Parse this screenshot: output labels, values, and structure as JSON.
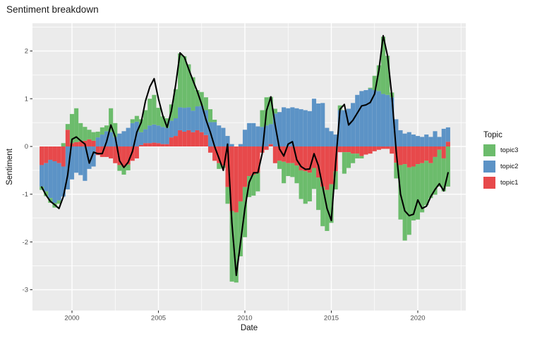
{
  "chart": {
    "title": "Sentiment breakdown",
    "x_axis_title": "Date",
    "y_axis_title": "Sentiment",
    "legend": {
      "title": "Topic",
      "items": [
        {
          "label": "topic3",
          "color": "#6CBC6C"
        },
        {
          "label": "topic2",
          "color": "#5C93C6"
        },
        {
          "label": "topic1",
          "color": "#E7494B"
        }
      ]
    },
    "colors": {
      "panel_background": "#EBEBEB",
      "gridline": "#FFFFFF",
      "tick_mark": "#333333",
      "tick_label": "#4D4D4D",
      "line": "#000000"
    }
  },
  "chart_data": {
    "type": "bar",
    "stacked": true,
    "overlay_line": true,
    "title": "Sentiment breakdown",
    "xlabel": "Date",
    "ylabel": "Sentiment",
    "legend_title": "Topic",
    "legend_position": "right",
    "grid": true,
    "xlim": [
      1997.7,
      2022.8
    ],
    "ylim": [
      -3.44,
      2.58
    ],
    "x_ticks": [
      {
        "value": 2000,
        "label": "2000"
      },
      {
        "value": 2005,
        "label": "2005"
      },
      {
        "value": 2010,
        "label": "2010"
      },
      {
        "value": 2015,
        "label": "2015"
      },
      {
        "value": 2020,
        "label": "2020"
      }
    ],
    "x_minor_ticks": [
      2002.5,
      2007.5,
      2012.5,
      2017.5,
      2022.5
    ],
    "y_ticks": [
      {
        "value": 2,
        "label": "2"
      },
      {
        "value": 1,
        "label": "1"
      },
      {
        "value": 0,
        "label": "0"
      },
      {
        "value": -1,
        "label": "-1"
      },
      {
        "value": -2,
        "label": "-2"
      },
      {
        "value": -3,
        "label": "-3"
      }
    ],
    "y_minor_ticks": [
      2.5,
      1.5,
      0.5,
      -0.5,
      -1.5,
      -2.5
    ],
    "x": [
      1998.25,
      1998.5,
      1998.75,
      1999.0,
      1999.25,
      1999.5,
      1999.75,
      2000.0,
      2000.25,
      2000.5,
      2000.75,
      2001.0,
      2001.25,
      2001.5,
      2001.75,
      2002.0,
      2002.25,
      2002.5,
      2002.75,
      2003.0,
      2003.25,
      2003.5,
      2003.75,
      2004.0,
      2004.25,
      2004.5,
      2004.75,
      2005.0,
      2005.25,
      2005.5,
      2005.75,
      2006.0,
      2006.25,
      2006.5,
      2006.75,
      2007.0,
      2007.25,
      2007.5,
      2007.75,
      2008.0,
      2008.25,
      2008.5,
      2008.75,
      2009.0,
      2009.25,
      2009.5,
      2009.75,
      2010.0,
      2010.25,
      2010.5,
      2010.75,
      2011.0,
      2011.25,
      2011.5,
      2011.75,
      2012.0,
      2012.25,
      2012.5,
      2012.75,
      2013.0,
      2013.25,
      2013.5,
      2013.75,
      2014.0,
      2014.25,
      2014.5,
      2014.75,
      2015.0,
      2015.25,
      2015.5,
      2015.75,
      2016.0,
      2016.25,
      2016.5,
      2016.75,
      2017.0,
      2017.25,
      2017.5,
      2017.75,
      2018.0,
      2018.25,
      2018.5,
      2018.75,
      2019.0,
      2019.25,
      2019.5,
      2019.75,
      2020.0,
      2020.25,
      2020.5,
      2020.75,
      2021.0,
      2021.25,
      2021.5,
      2021.75
    ],
    "series": [
      {
        "name": "topic1",
        "color": "#E7494B",
        "values": [
          -0.39,
          -0.35,
          -0.28,
          -0.31,
          -0.35,
          -0.42,
          0.35,
          0.07,
          0.09,
          0.1,
          0.12,
          0.15,
          0.12,
          -0.18,
          -0.22,
          -0.22,
          -0.25,
          -0.35,
          -0.39,
          -0.43,
          -0.38,
          -0.3,
          -0.25,
          0.03,
          0.07,
          0.07,
          0.08,
          0.07,
          0.05,
          0.05,
          0.19,
          0.22,
          0.34,
          0.31,
          0.34,
          0.3,
          0.34,
          0.3,
          0.24,
          -0.13,
          -0.3,
          -0.35,
          -0.4,
          -0.85,
          -1.35,
          -1.38,
          -1.15,
          -0.85,
          -0.62,
          -0.59,
          -0.55,
          -0.13,
          -0.07,
          0.05,
          -0.35,
          -0.3,
          -0.32,
          -0.35,
          -0.35,
          -0.4,
          -0.5,
          -0.52,
          -0.55,
          -0.45,
          -0.65,
          -0.84,
          -0.91,
          -0.79,
          -0.52,
          -0.12,
          -0.12,
          -0.12,
          -0.15,
          -0.15,
          -0.2,
          -0.17,
          -0.15,
          -0.1,
          -0.07,
          -0.05,
          -0.05,
          -0.15,
          -0.34,
          -0.39,
          -0.37,
          -0.44,
          -0.42,
          -0.37,
          -0.35,
          -0.3,
          -0.35,
          -0.22,
          -0.07,
          -0.25,
          0.1
        ]
      },
      {
        "name": "topic2",
        "color": "#5C93C6",
        "values": [
          -0.45,
          -0.59,
          -0.8,
          -0.87,
          -0.78,
          -0.63,
          -0.9,
          -0.69,
          -0.55,
          -0.6,
          -0.72,
          -0.47,
          -0.42,
          0.19,
          0.25,
          0.32,
          0.3,
          0.2,
          0.27,
          0.32,
          0.39,
          0.49,
          0.52,
          0.27,
          0.29,
          0.37,
          0.38,
          0.37,
          0.36,
          0.34,
          0.35,
          0.37,
          0.48,
          0.5,
          0.48,
          0.45,
          0.5,
          0.55,
          0.52,
          0.51,
          0.51,
          0.44,
          0.39,
          0.22,
          0.05,
          0.0,
          0.05,
          0.35,
          0.49,
          0.49,
          0.42,
          0.41,
          0.44,
          0.42,
          0.69,
          0.72,
          0.82,
          0.8,
          0.82,
          0.8,
          0.78,
          0.76,
          0.74,
          1.0,
          0.9,
          0.91,
          0.39,
          0.32,
          0.25,
          0.76,
          0.76,
          0.79,
          0.91,
          1.08,
          1.16,
          1.18,
          1.21,
          1.18,
          1.16,
          1.1,
          1.08,
          1.03,
          0.57,
          0.34,
          0.27,
          0.3,
          0.25,
          0.22,
          0.2,
          0.25,
          0.2,
          0.32,
          0.2,
          0.37,
          0.3
        ]
      },
      {
        "name": "topic3",
        "color": "#6CBC6C",
        "values": [
          -0.07,
          -0.1,
          -0.1,
          -0.1,
          -0.07,
          0.07,
          0.12,
          0.61,
          0.71,
          0.39,
          0.29,
          0.2,
          0.18,
          0.12,
          0.15,
          0.12,
          0.5,
          0.29,
          -0.12,
          -0.16,
          -0.12,
          0.08,
          0.12,
          0.27,
          0.4,
          0.56,
          0.62,
          0.37,
          0.22,
          0.2,
          0.34,
          0.61,
          1.13,
          1.08,
          0.9,
          0.7,
          0.34,
          0.29,
          0.27,
          0.27,
          0.05,
          -0.12,
          -0.05,
          -0.35,
          -1.48,
          -1.47,
          -1.15,
          -1.05,
          -0.44,
          -0.44,
          -0.39,
          0.35,
          0.59,
          0.57,
          0.1,
          -0.17,
          -0.45,
          -0.27,
          -0.29,
          -0.37,
          -0.6,
          -0.68,
          -0.6,
          -0.44,
          -0.68,
          -0.83,
          -0.86,
          -0.81,
          -0.38,
          0.1,
          -0.45,
          -0.33,
          -0.2,
          -0.1,
          -0.05,
          0.0,
          0.02,
          0.3,
          0.54,
          1.2,
          0.82,
          0.1,
          -0.33,
          -1.14,
          -1.6,
          -1.41,
          -1.13,
          -1.16,
          -1.03,
          -0.93,
          -0.73,
          -0.79,
          -0.77,
          -0.69,
          -0.84
        ]
      }
    ],
    "line_series": {
      "name": "total-sentiment-line",
      "color": "#000000",
      "values": [
        -0.85,
        -1.02,
        -1.15,
        -1.22,
        -1.3,
        -1.05,
        -0.6,
        0.15,
        0.2,
        0.12,
        0.05,
        -0.35,
        -0.12,
        -0.15,
        -0.15,
        0.1,
        0.45,
        0.2,
        -0.3,
        -0.44,
        -0.33,
        -0.1,
        0.3,
        0.5,
        0.95,
        1.25,
        1.42,
        1.0,
        0.65,
        0.4,
        0.75,
        1.3,
        1.96,
        1.87,
        1.62,
        1.38,
        1.15,
        0.88,
        0.56,
        0.3,
        0.0,
        -0.25,
        -0.5,
        0.05,
        -1.6,
        -2.7,
        -2.0,
        -1.3,
        -0.75,
        -0.55,
        -0.55,
        -0.15,
        0.75,
        1.04,
        0.45,
        -0.05,
        -0.2,
        0.05,
        0.1,
        -0.28,
        -0.42,
        -0.48,
        -0.47,
        -0.15,
        -0.4,
        -0.85,
        -1.3,
        -1.55,
        -0.35,
        0.78,
        0.88,
        0.45,
        0.55,
        0.7,
        0.85,
        0.87,
        0.92,
        1.1,
        1.6,
        2.32,
        1.9,
        1.05,
        -0.1,
        -1.0,
        -1.35,
        -1.45,
        -1.42,
        -1.12,
        -1.3,
        -1.25,
        -1.05,
        -0.9,
        -0.78,
        -0.93,
        -0.55
      ]
    }
  }
}
